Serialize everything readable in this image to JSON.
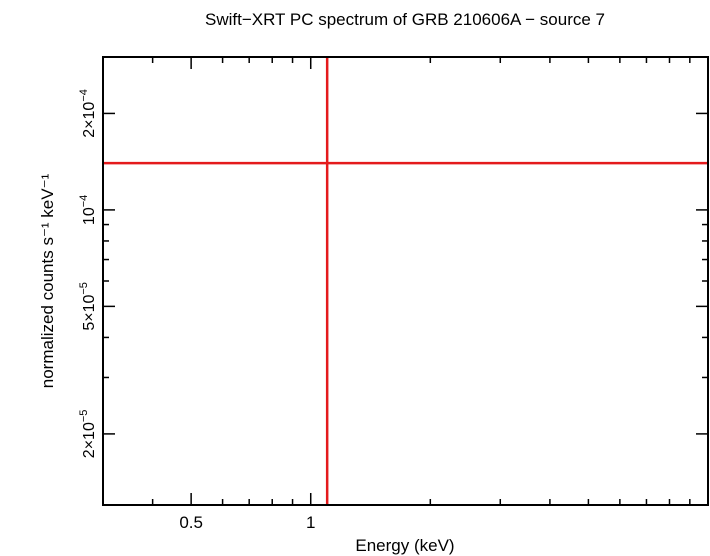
{
  "chart_data": {
    "type": "line",
    "title": "Swift−XRT PC spectrum of GRB 210606A − source 7",
    "xlabel": "Energy (keV)",
    "ylabel": "normalized counts s⁻¹ keV⁻¹",
    "x_scale": "log",
    "y_scale": "log",
    "xlim": [
      0.3,
      10
    ],
    "ylim": [
      1.2e-05,
      0.0003
    ],
    "x_ticks": [
      {
        "value": 0.5,
        "label": "0.5"
      },
      {
        "value": 1,
        "label": "1"
      }
    ],
    "y_ticks": [
      {
        "value": 2e-05,
        "label_mantissa": "2×10",
        "label_exp": "−5"
      },
      {
        "value": 5e-05,
        "label_mantissa": "5×10",
        "label_exp": "−5"
      },
      {
        "value": 0.0001,
        "label_mantissa": "10",
        "label_exp": "−4"
      },
      {
        "value": 0.0002,
        "label_mantissa": "2×10",
        "label_exp": "−4"
      }
    ],
    "series": [
      {
        "color": "#e41a1c",
        "points": [
          {
            "x": 1.1,
            "x_err": [
              0.3,
              10
            ],
            "y": 0.00014,
            "y_err": [
              1.2e-05,
              0.0003
            ]
          }
        ]
      }
    ]
  }
}
